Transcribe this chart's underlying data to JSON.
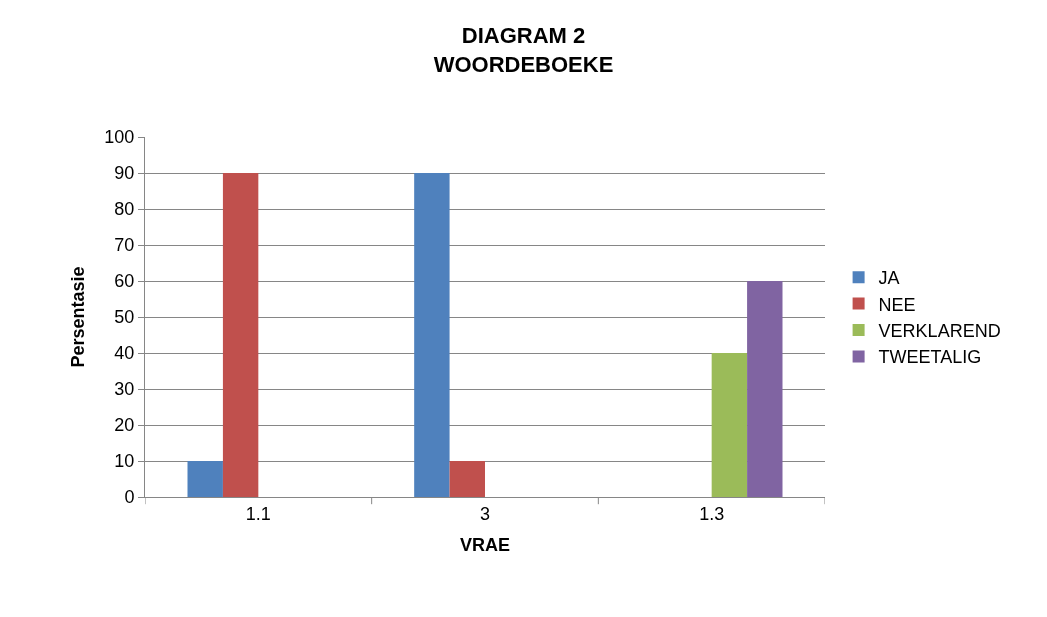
{
  "chart_data": {
    "type": "bar",
    "title": "DIAGRAM 2\nWOORDEBOEKE",
    "xlabel": "VRAE",
    "ylabel": "Persentasie",
    "categories": [
      "1.1",
      "3",
      "1.3"
    ],
    "series": [
      {
        "name": "JA",
        "color": "#4f81bd",
        "values": [
          10,
          90,
          null
        ]
      },
      {
        "name": "NEE",
        "color": "#c0504d",
        "values": [
          90,
          10,
          null
        ]
      },
      {
        "name": "VERKLAREND",
        "color": "#9bbb59",
        "values": [
          null,
          null,
          40
        ]
      },
      {
        "name": "TWEETALIG",
        "color": "#8064a2",
        "values": [
          null,
          null,
          60
        ]
      }
    ],
    "ylim": [
      0,
      100
    ],
    "yticks": [
      0,
      10,
      20,
      30,
      40,
      50,
      60,
      70,
      80,
      90,
      100
    ],
    "grid": "y",
    "legend": "right"
  }
}
